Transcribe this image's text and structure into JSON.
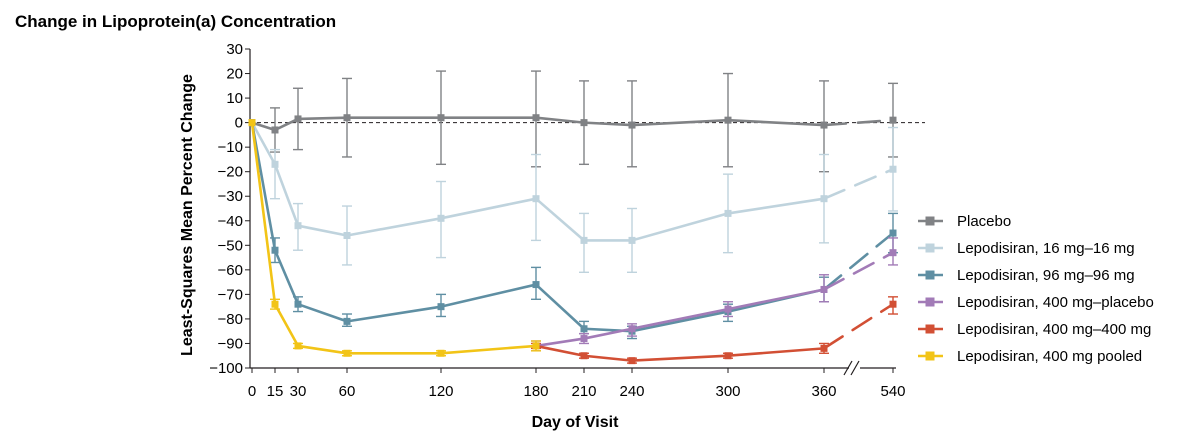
{
  "chart_data": {
    "type": "line",
    "title": "Change in Lipoprotein(a) Concentration",
    "xlabel": "Day of Visit",
    "ylabel": "Least-Squares Mean Percent Change",
    "ylim": [
      -100,
      30
    ],
    "yticks": [
      30,
      20,
      10,
      0,
      -10,
      -20,
      -30,
      -40,
      -50,
      -60,
      -70,
      -80,
      -90,
      -100
    ],
    "yticklabels": [
      "30",
      "20",
      "10",
      "0",
      "−10",
      "−20",
      "−30",
      "−40",
      "−50",
      "−60",
      "−70",
      "−80",
      "−90",
      "−100"
    ],
    "xticks": [
      0,
      15,
      30,
      60,
      120,
      180,
      210,
      240,
      300,
      360,
      540
    ],
    "xticklabels": [
      "0",
      "15",
      "30",
      "60",
      "120",
      "180",
      "210",
      "240",
      "300",
      "360",
      "540"
    ],
    "axis_break": "between 360 and 540",
    "reference_line": 0,
    "legend_position": "right",
    "series": [
      {
        "name": "Placebo",
        "color": "#808285",
        "x": [
          0,
          15,
          30,
          60,
          120,
          180,
          210,
          240,
          300,
          360,
          540
        ],
        "y": [
          0,
          -3,
          1.5,
          2,
          2,
          2,
          0,
          -1,
          1,
          -1,
          1
        ],
        "lower": [
          0,
          -12,
          -11,
          -14,
          -17,
          -18,
          -17,
          -18,
          -18,
          -20,
          -14
        ],
        "upper": [
          0,
          6,
          14,
          18,
          21,
          21,
          17,
          17,
          20,
          17,
          16
        ]
      },
      {
        "name": "Lepodisiran, 16 mg–16 mg",
        "color": "#bfd3dd",
        "x": [
          0,
          15,
          30,
          60,
          120,
          180,
          210,
          240,
          300,
          360,
          540
        ],
        "y": [
          0,
          -17,
          -42,
          -46,
          -39,
          -31,
          -48,
          -48,
          -37,
          -31,
          -19
        ],
        "lower": [
          0,
          -31,
          -52,
          -58,
          -55,
          -48,
          -61,
          -61,
          -53,
          -49,
          -36
        ],
        "upper": [
          0,
          -11,
          -33,
          -34,
          -24,
          -13,
          -37,
          -35,
          -21,
          -13,
          -2
        ]
      },
      {
        "name": "Lepodisiran, 96 mg–96 mg",
        "color": "#5f8fa3",
        "x": [
          0,
          15,
          30,
          60,
          120,
          180,
          210,
          240,
          300,
          360,
          540
        ],
        "y": [
          0,
          -52,
          -74,
          -81,
          -75,
          -66,
          -84,
          -85,
          -77,
          -68,
          -45
        ],
        "lower": [
          0,
          -57,
          -77,
          -83,
          -79,
          -72,
          -86,
          -88,
          -81,
          -73,
          -53
        ],
        "upper": [
          0,
          -47,
          -71,
          -78,
          -70,
          -59,
          -81,
          -83,
          -74,
          -63,
          -37
        ]
      },
      {
        "name": "Lepodisiran, 400 mg–placebo",
        "color": "#a27bb7",
        "x": [
          180,
          210,
          240,
          300,
          360,
          540
        ],
        "y": [
          -91,
          -88,
          -84,
          -76,
          -68,
          -53
        ],
        "lower": [
          -93,
          -90,
          -87,
          -79,
          -73,
          -58
        ],
        "upper": [
          -89,
          -86,
          -82,
          -73,
          -62,
          -47
        ]
      },
      {
        "name": "Lepodisiran, 400 mg–400 mg",
        "color": "#d24f34",
        "x": [
          180,
          210,
          240,
          300,
          360,
          540
        ],
        "y": [
          -91,
          -95,
          -97,
          -95,
          -92,
          -74
        ],
        "lower": [
          -92,
          -96,
          -98,
          -96,
          -94,
          -78
        ],
        "upper": [
          -90,
          -94,
          -96,
          -94,
          -90,
          -71
        ]
      },
      {
        "name": "Lepodisiran, 400 mg pooled",
        "color": "#f2c417",
        "x": [
          0,
          15,
          30,
          60,
          120,
          180
        ],
        "y": [
          0,
          -74,
          -91,
          -94,
          -94,
          -91
        ],
        "lower": [
          0,
          -76,
          -92,
          -95,
          -95,
          -93
        ],
        "upper": [
          0,
          -72,
          -90,
          -93,
          -93,
          -89
        ]
      }
    ]
  }
}
